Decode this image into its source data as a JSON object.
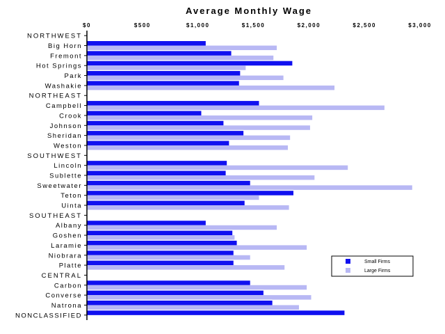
{
  "chart_data": {
    "type": "bar",
    "orientation": "horizontal",
    "title": "Average Monthly Wage",
    "xlim": [
      0,
      3000
    ],
    "x_ticks": [
      "$0",
      "$500",
      "$1,000",
      "$1,500",
      "$2,000",
      "$2,500",
      "$3,000"
    ],
    "grid": false,
    "legend_position": "bottom-right",
    "colors": {
      "small": "#1010f0",
      "large": "#b8b8f4"
    },
    "series": [
      {
        "name": "Small Firms",
        "key": "small"
      },
      {
        "name": "Large Firms",
        "key": "large"
      }
    ],
    "rows": [
      {
        "label": "NORTHWEST",
        "group": true
      },
      {
        "label": "Big Horn",
        "small": 1070,
        "large": 1710
      },
      {
        "label": "Fremont",
        "small": 1300,
        "large": 1680
      },
      {
        "label": "Hot Springs",
        "small": 1850,
        "large": 1430
      },
      {
        "label": "Park",
        "small": 1380,
        "large": 1770
      },
      {
        "label": "Washakie",
        "small": 1370,
        "large": 2230
      },
      {
        "label": "NORTHEAST",
        "group": true
      },
      {
        "label": "Campbell",
        "small": 1550,
        "large": 2680
      },
      {
        "label": "Crook",
        "small": 1030,
        "large": 2030
      },
      {
        "label": "Johnson",
        "small": 1230,
        "large": 2010
      },
      {
        "label": "Sheridan",
        "small": 1410,
        "large": 1830
      },
      {
        "label": "Weston",
        "small": 1280,
        "large": 1810
      },
      {
        "label": "SOUTHWEST",
        "group": true
      },
      {
        "label": "Lincoln",
        "small": 1260,
        "large": 2350
      },
      {
        "label": "Sublette",
        "small": 1250,
        "large": 2050
      },
      {
        "label": "Sweetwater",
        "small": 1470,
        "large": 2930
      },
      {
        "label": "Teton",
        "small": 1860,
        "large": 1550
      },
      {
        "label": "Uinta",
        "small": 1420,
        "large": 1820
      },
      {
        "label": "SOUTHEAST",
        "group": true
      },
      {
        "label": "Albany",
        "small": 1070,
        "large": 1710
      },
      {
        "label": "Goshen",
        "small": 1310,
        "large": 1330
      },
      {
        "label": "Laramie",
        "small": 1350,
        "large": 1980
      },
      {
        "label": "Niobrara",
        "small": 1320,
        "large": 1470
      },
      {
        "label": "Platte",
        "small": 1320,
        "large": 1780
      },
      {
        "label": "CENTRAL",
        "group": true
      },
      {
        "label": "Carbon",
        "small": 1470,
        "large": 1980
      },
      {
        "label": "Converse",
        "small": 1590,
        "large": 2020
      },
      {
        "label": "Natrona",
        "small": 1670,
        "large": 1910
      },
      {
        "label": "NONCLASSIFIED",
        "small": 2320
      }
    ]
  }
}
